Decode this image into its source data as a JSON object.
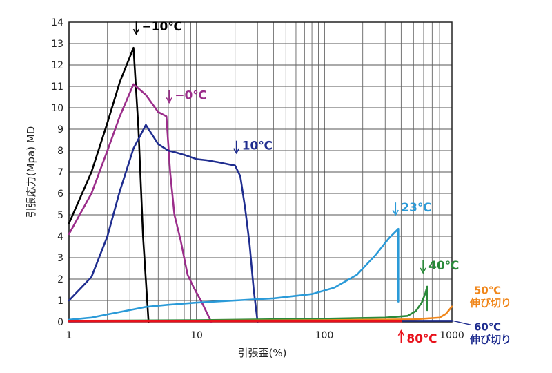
{
  "chart_data": {
    "type": "line",
    "xlabel": "引張歪(%)",
    "ylabel": "引張応力(Mpa) MD",
    "xscale": "log",
    "xlim": [
      1,
      1000
    ],
    "ylim": [
      0,
      14
    ],
    "grid": true,
    "x_tick_labels": [
      "1",
      "10",
      "100",
      "1000"
    ],
    "y_tick_labels": [
      "0",
      "1",
      "2",
      "3",
      "4",
      "5",
      "6",
      "7",
      "8",
      "9",
      "10",
      "11",
      "12",
      "13",
      "14"
    ],
    "series": [
      {
        "name": "−10℃",
        "color": "#000000",
        "points": [
          [
            1,
            4.6
          ],
          [
            1.5,
            7
          ],
          [
            2,
            9.3
          ],
          [
            2.5,
            11.2
          ],
          [
            3.2,
            12.8
          ],
          [
            3.5,
            9
          ],
          [
            3.8,
            4
          ],
          [
            4.2,
            0
          ]
        ]
      },
      {
        "name": "−0℃",
        "color": "#9b2d8a",
        "points": [
          [
            1,
            4.1
          ],
          [
            1.5,
            6
          ],
          [
            2,
            8
          ],
          [
            2.5,
            9.6
          ],
          [
            3.2,
            11.1
          ],
          [
            4,
            10.6
          ],
          [
            5,
            9.8
          ],
          [
            5.8,
            9.6
          ],
          [
            6.2,
            7
          ],
          [
            6.7,
            5
          ],
          [
            7.5,
            3.8
          ],
          [
            8.5,
            2.2
          ],
          [
            9.5,
            1.6
          ],
          [
            11,
            0.9
          ],
          [
            13,
            0
          ]
        ]
      },
      {
        "name": "10℃",
        "color": "#1f2d8f",
        "points": [
          [
            1,
            1
          ],
          [
            1.5,
            2.1
          ],
          [
            2,
            4
          ],
          [
            2.5,
            6.1
          ],
          [
            3.2,
            8.1
          ],
          [
            4,
            9.2
          ],
          [
            5,
            8.3
          ],
          [
            6,
            8
          ],
          [
            7,
            7.9
          ],
          [
            8,
            7.8
          ],
          [
            10,
            7.6
          ],
          [
            12,
            7.55
          ],
          [
            15,
            7.45
          ],
          [
            18,
            7.35
          ],
          [
            20,
            7.3
          ],
          [
            22,
            6.8
          ],
          [
            24,
            5.3
          ],
          [
            26,
            3.6
          ],
          [
            28,
            1.5
          ],
          [
            30,
            0
          ]
        ]
      },
      {
        "name": "23℃",
        "color": "#2a9ad8",
        "points": [
          [
            1,
            0.1
          ],
          [
            1.5,
            0.2
          ],
          [
            2,
            0.35
          ],
          [
            3,
            0.55
          ],
          [
            4,
            0.7
          ],
          [
            6,
            0.8
          ],
          [
            10,
            0.9
          ],
          [
            20,
            1
          ],
          [
            40,
            1.1
          ],
          [
            80,
            1.3
          ],
          [
            120,
            1.6
          ],
          [
            180,
            2.2
          ],
          [
            250,
            3.1
          ],
          [
            320,
            3.9
          ],
          [
            380,
            4.35
          ],
          [
            380,
            0.95
          ]
        ]
      },
      {
        "name": "40℃",
        "color": "#2a8a3a",
        "points": [
          [
            1,
            0.05
          ],
          [
            10,
            0.08
          ],
          [
            100,
            0.15
          ],
          [
            300,
            0.2
          ],
          [
            450,
            0.28
          ],
          [
            520,
            0.5
          ],
          [
            580,
            0.9
          ],
          [
            620,
            1.35
          ],
          [
            640,
            1.65
          ],
          [
            640,
            0.55
          ]
        ]
      },
      {
        "name": "50℃",
        "color": "#f0861a",
        "points": [
          [
            1,
            0.03
          ],
          [
            100,
            0.08
          ],
          [
            500,
            0.12
          ],
          [
            800,
            0.2
          ],
          [
            900,
            0.38
          ],
          [
            1000,
            0.72
          ]
        ]
      },
      {
        "name": "60℃",
        "color": "#1f2d8f",
        "points": [
          [
            1,
            0.02
          ],
          [
            100,
            0.05
          ],
          [
            1000,
            0.05
          ]
        ]
      },
      {
        "name": "80℃",
        "color": "#e8111b",
        "points": [
          [
            1,
            0.04
          ],
          [
            10,
            0.04
          ],
          [
            100,
            0.04
          ],
          [
            400,
            0.04
          ]
        ]
      }
    ],
    "annotations": [
      {
        "text": "−10℃",
        "color": "#000000",
        "x": 3.2,
        "y": 12.8
      },
      {
        "text": "−0℃",
        "color": "#9b2d8a",
        "x": 5.8,
        "y": 9.6
      },
      {
        "text": "10℃",
        "color": "#1f2d8f",
        "x": 20,
        "y": 7.3
      },
      {
        "text": "23℃",
        "color": "#2a9ad8",
        "x": 380,
        "y": 4.35
      },
      {
        "text": "40℃",
        "color": "#2a8a3a",
        "x": 640,
        "y": 1.65
      },
      {
        "text": "50℃",
        "sub": "伸び切り",
        "color": "#f0861a",
        "x": 1000,
        "y": 0.72
      },
      {
        "text": "60℃",
        "sub": "伸び切り",
        "color": "#1f2d8f",
        "x": 1000,
        "y": 0.05
      },
      {
        "text": "80℃",
        "color": "#e8111b",
        "x": 400,
        "y": 0.04
      }
    ]
  }
}
